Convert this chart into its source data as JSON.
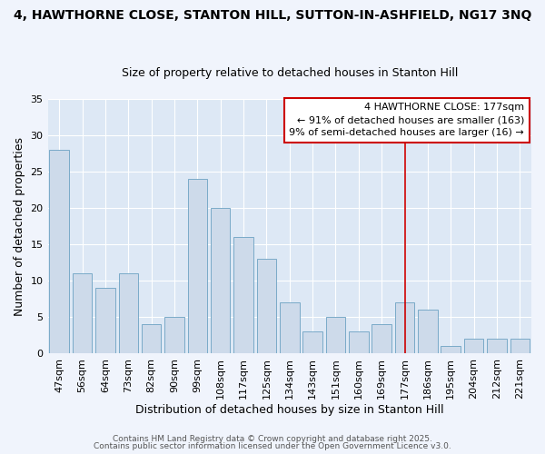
{
  "title_line1": "4, HAWTHORNE CLOSE, STANTON HILL, SUTTON-IN-ASHFIELD, NG17 3NQ",
  "title_line2": "Size of property relative to detached houses in Stanton Hill",
  "xlabel": "Distribution of detached houses by size in Stanton Hill",
  "ylabel": "Number of detached properties",
  "categories": [
    "47sqm",
    "56sqm",
    "64sqm",
    "73sqm",
    "82sqm",
    "90sqm",
    "99sqm",
    "108sqm",
    "117sqm",
    "125sqm",
    "134sqm",
    "143sqm",
    "151sqm",
    "160sqm",
    "169sqm",
    "177sqm",
    "186sqm",
    "195sqm",
    "204sqm",
    "212sqm",
    "221sqm"
  ],
  "values": [
    28,
    11,
    9,
    11,
    4,
    5,
    24,
    20,
    16,
    13,
    7,
    3,
    5,
    3,
    4,
    7,
    6,
    1,
    2,
    2,
    2
  ],
  "bar_color": "#cddaea",
  "bar_edge_color": "#7aaac8",
  "plot_bg_color": "#dde8f5",
  "fig_bg_color": "#f0f4fc",
  "vline_index": 15,
  "vline_color": "#cc0000",
  "ylim": [
    0,
    35
  ],
  "yticks": [
    0,
    5,
    10,
    15,
    20,
    25,
    30,
    35
  ],
  "annotation_title": "4 HAWTHORNE CLOSE: 177sqm",
  "annotation_line1": "← 91% of detached houses are smaller (163)",
  "annotation_line2": "9% of semi-detached houses are larger (16) →",
  "annotation_box_facecolor": "#ffffff",
  "annotation_box_edgecolor": "#cc0000",
  "footnote1": "Contains HM Land Registry data © Crown copyright and database right 2025.",
  "footnote2": "Contains public sector information licensed under the Open Government Licence v3.0.",
  "title_fontsize": 10,
  "subtitle_fontsize": 9,
  "xlabel_fontsize": 9,
  "ylabel_fontsize": 9,
  "tick_fontsize": 8,
  "annot_fontsize": 8,
  "footnote_fontsize": 6.5
}
